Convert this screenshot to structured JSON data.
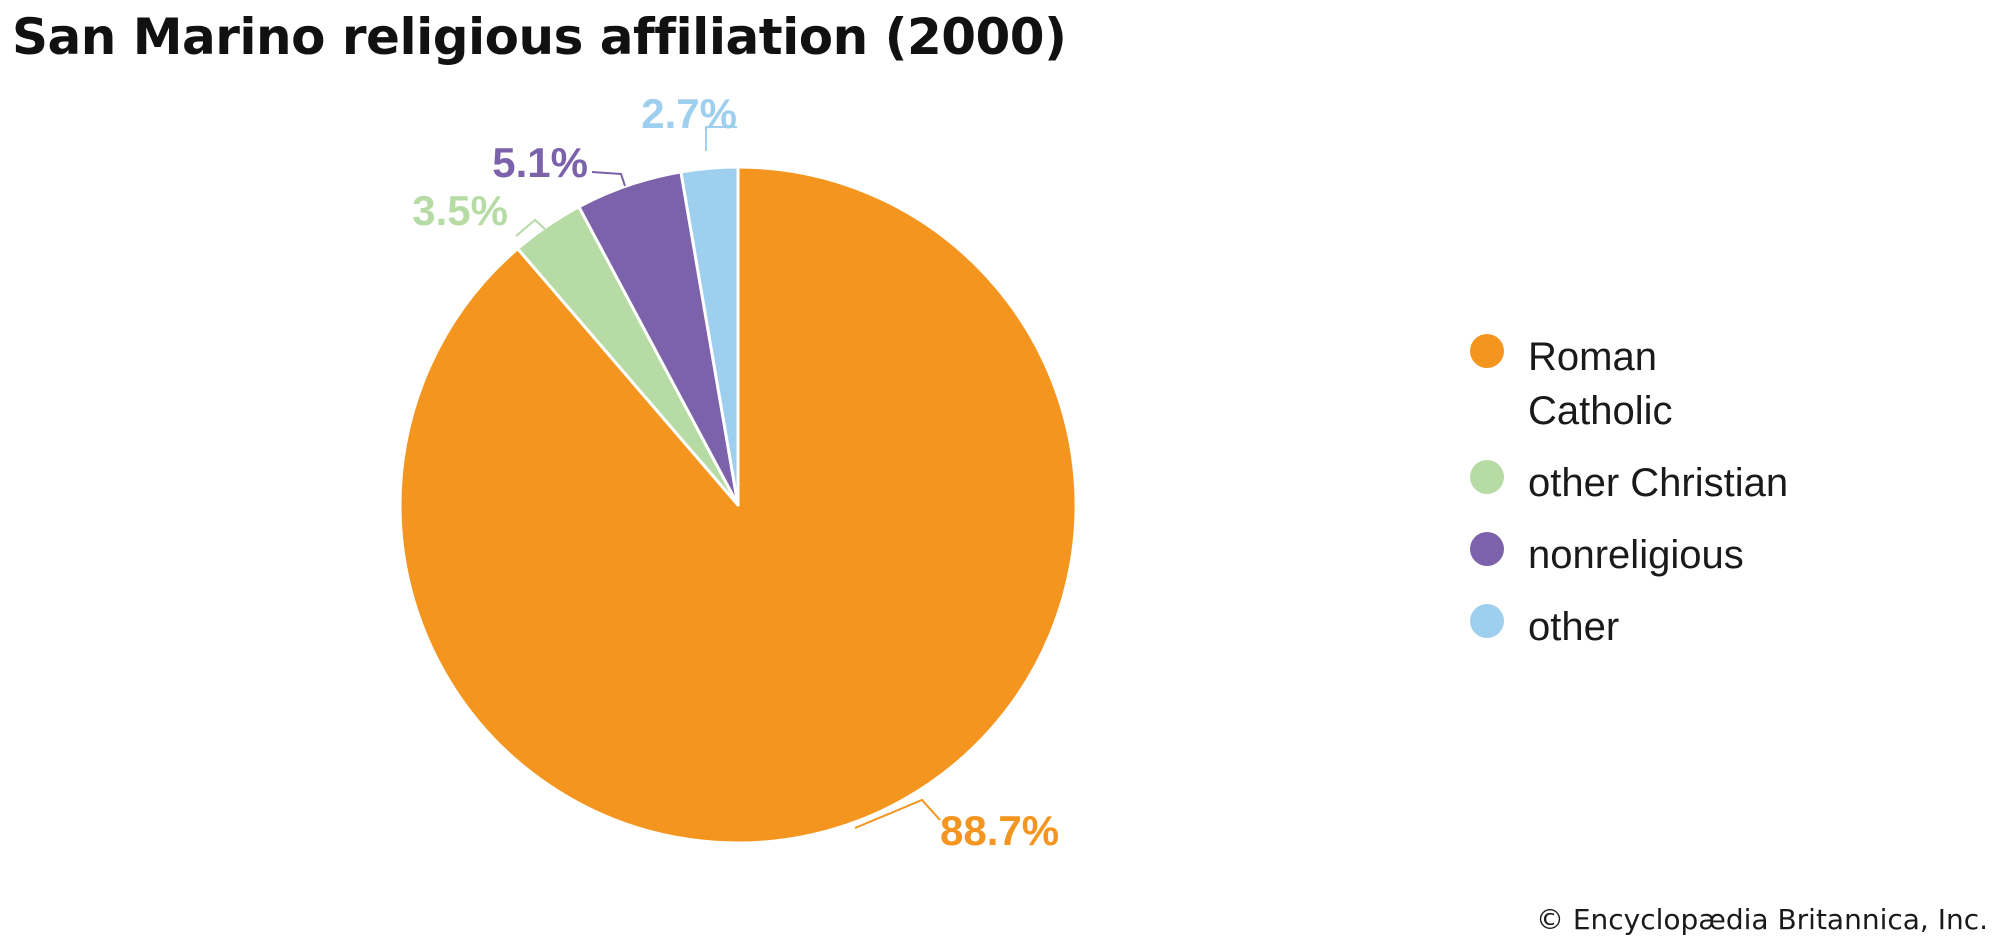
{
  "chart_data": {
    "type": "pie",
    "title": "San Marino religious affiliation (2000)",
    "slices": [
      {
        "name": "Roman Catholic",
        "legend_lines": [
          "Roman",
          "Catholic"
        ],
        "value": 88.7,
        "label": "88.7%",
        "color": "#F4951F"
      },
      {
        "name": "other Christian",
        "legend_lines": [
          "other Christian"
        ],
        "value": 3.5,
        "label": "3.5%",
        "color": "#B6DBA5"
      },
      {
        "name": "nonreligious",
        "legend_lines": [
          "nonreligious"
        ],
        "value": 5.1,
        "label": "5.1%",
        "color": "#7B62AA"
      },
      {
        "name": "other",
        "legend_lines": [
          "other"
        ],
        "value": 2.7,
        "label": "2.7%",
        "color": "#9FCFEE"
      }
    ],
    "legend_position": "right"
  },
  "credit": "© Encyclopædia Britannica, Inc."
}
